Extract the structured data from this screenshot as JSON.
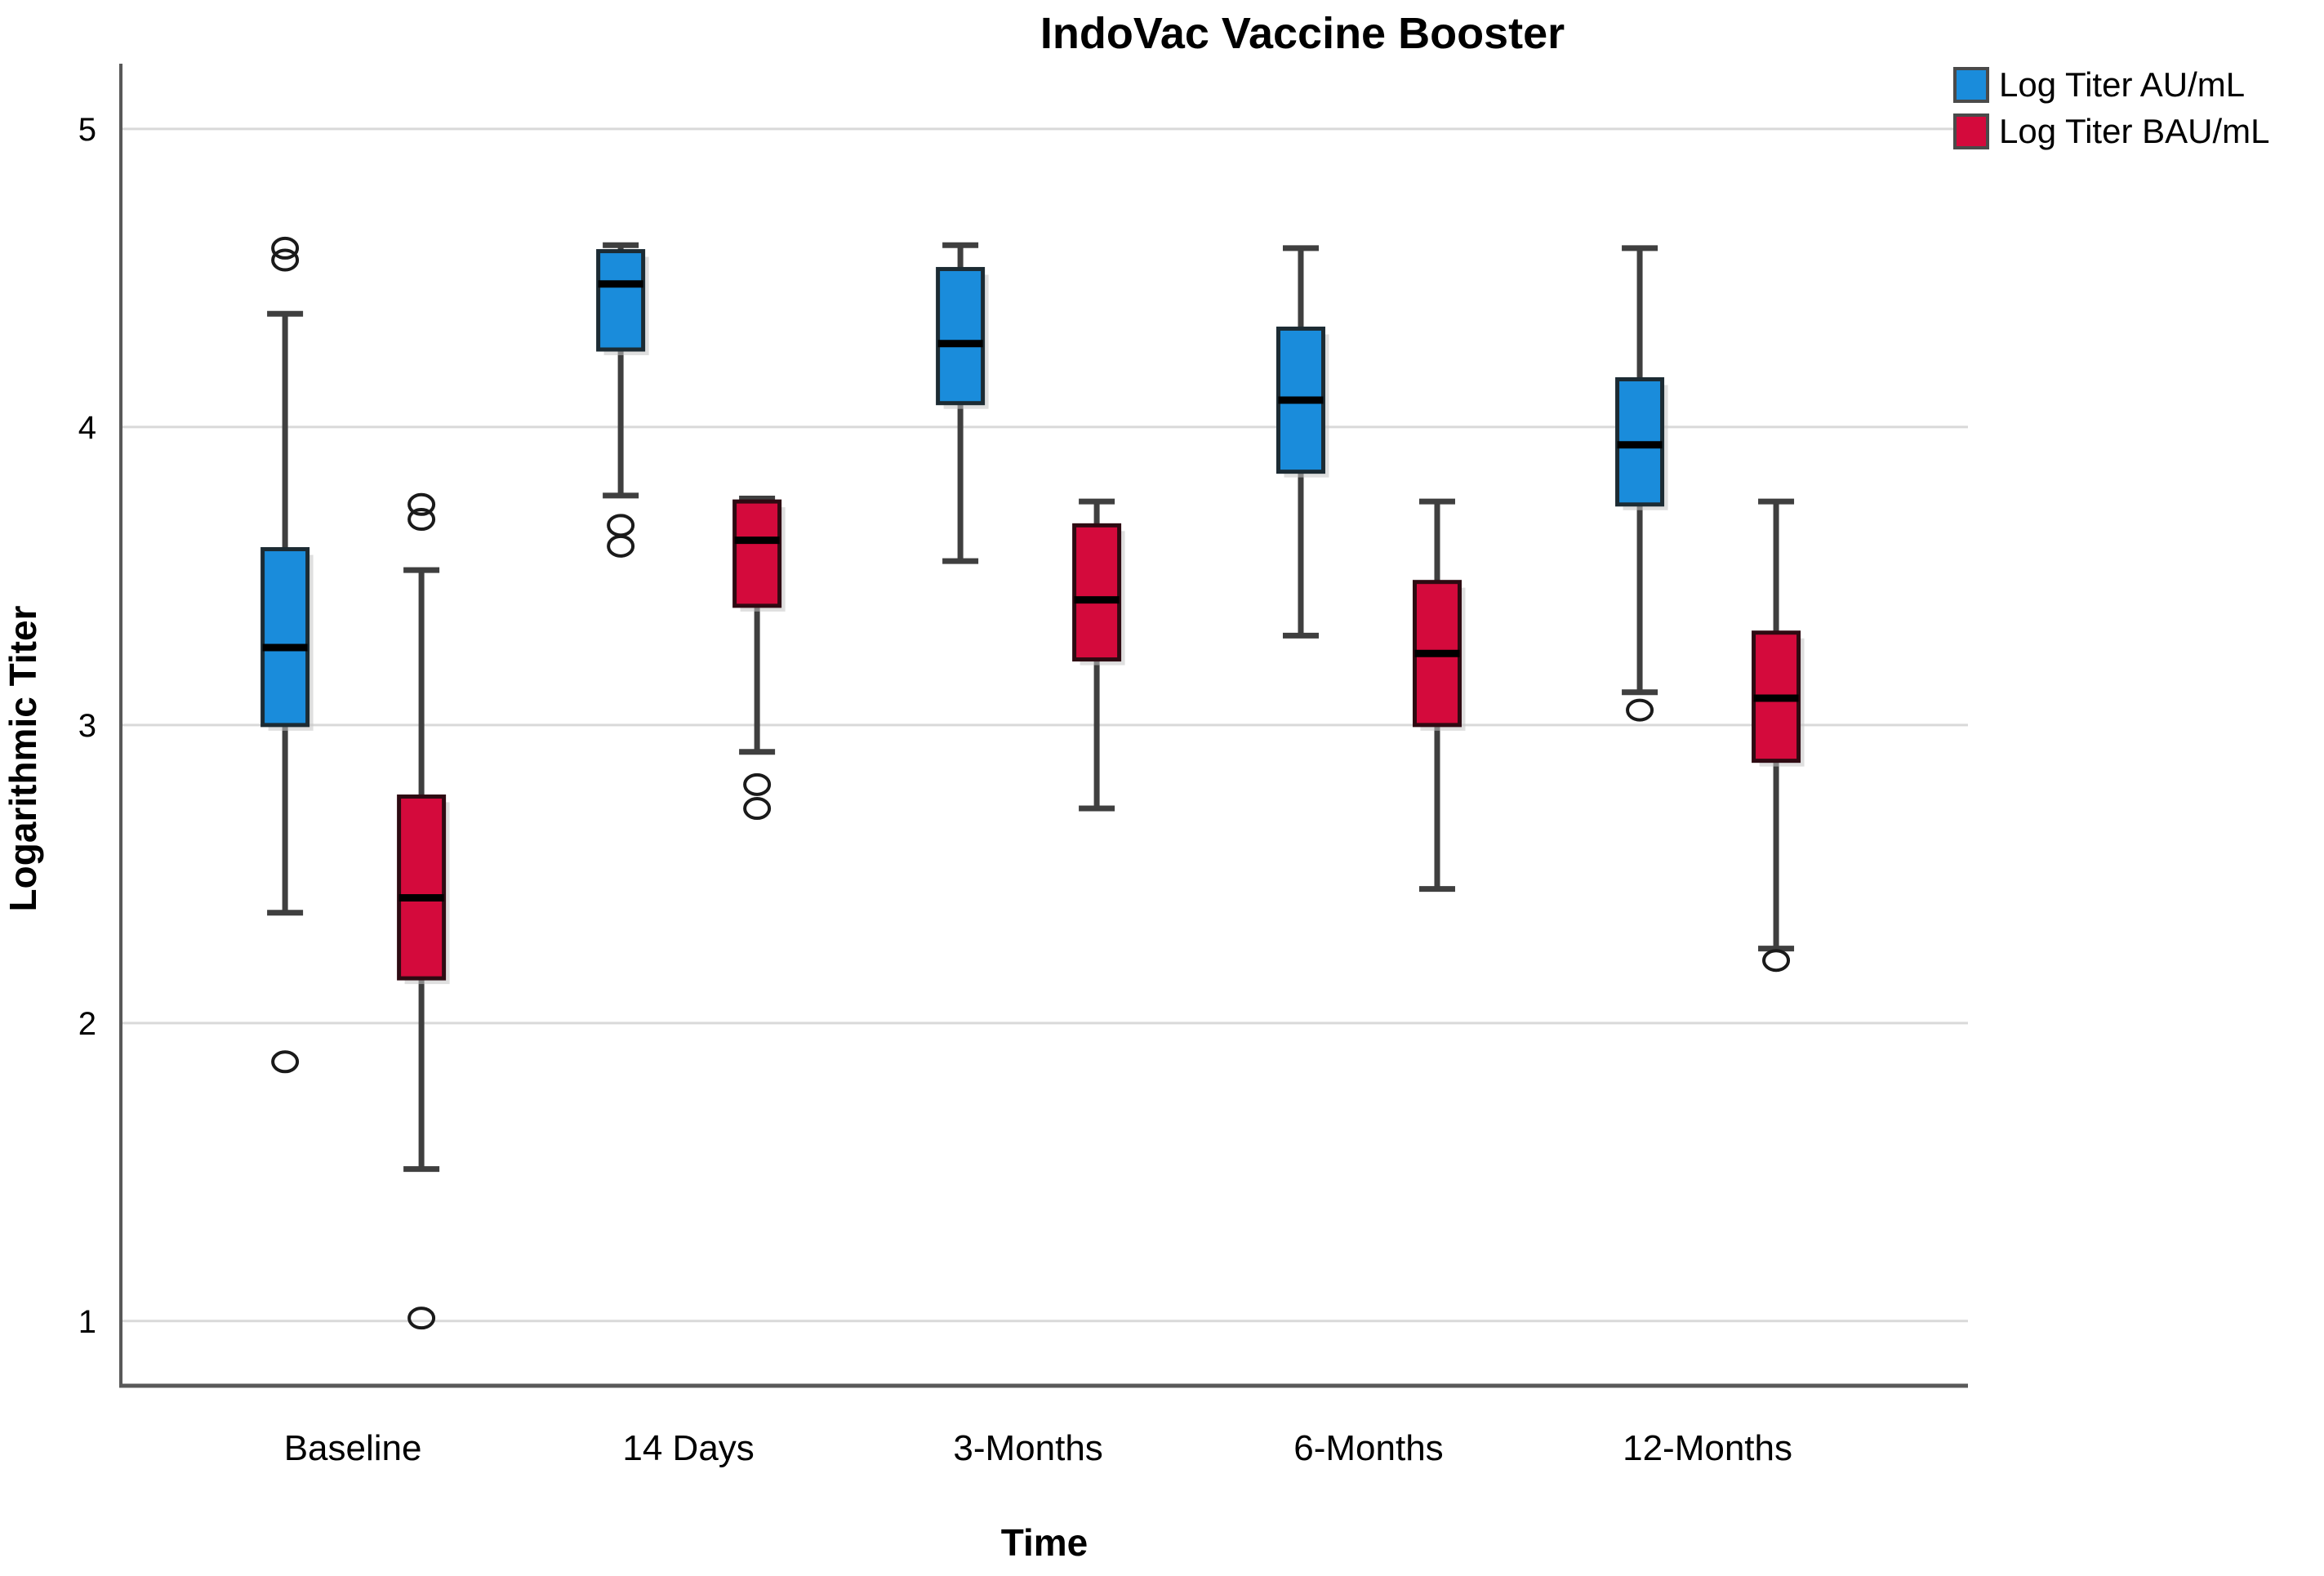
{
  "title": "IndoVac Vaccine Booster",
  "legend": [
    {
      "label": "Log Titer AU/mL",
      "color": "#1A8CDB"
    },
    {
      "label": "Log Titer BAU/mL",
      "color": "#D40A3C"
    }
  ],
  "axes": {
    "x_title": "Time",
    "y_title": "Logarithmic Titer",
    "y_ticks": [
      5,
      4,
      3,
      2,
      1
    ],
    "ylim": [
      0.783,
      5.219
    ],
    "grid": true,
    "legend_position": "top-right"
  },
  "chart_data": {
    "type": "boxplot",
    "title": "IndoVac Vaccine Booster",
    "xlabel": "Time",
    "ylabel": "Logarithmic Titer",
    "categories": [
      "Baseline",
      "14 Days",
      "3-Months",
      "6-Months",
      "12-Months"
    ],
    "series": [
      {
        "name": "Log Titer AU/mL",
        "color": "#1A8CDB",
        "border": "#1c2b33",
        "boxes": [
          {
            "whisker_low": 2.37,
            "q1": 3.0,
            "median": 3.26,
            "q3": 3.59,
            "whisker_high": 4.38,
            "outliers": [
              4.6,
              4.56,
              1.87
            ]
          },
          {
            "whisker_low": 3.77,
            "q1": 4.26,
            "median": 4.48,
            "q3": 4.59,
            "whisker_high": 4.61,
            "outliers": [
              3.67,
              3.6
            ]
          },
          {
            "whisker_low": 3.55,
            "q1": 4.08,
            "median": 4.28,
            "q3": 4.53,
            "whisker_high": 4.61,
            "outliers": []
          },
          {
            "whisker_low": 3.3,
            "q1": 3.85,
            "median": 4.09,
            "q3": 4.33,
            "whisker_high": 4.6,
            "outliers": []
          },
          {
            "whisker_low": 3.11,
            "q1": 3.74,
            "median": 3.94,
            "q3": 4.16,
            "whisker_high": 4.6,
            "outliers": [
              3.05
            ]
          }
        ]
      },
      {
        "name": "Log Titer BAU/mL",
        "color": "#D40A3C",
        "border": "#2e0a12",
        "boxes": [
          {
            "whisker_low": 1.51,
            "q1": 2.15,
            "median": 2.42,
            "q3": 2.76,
            "whisker_high": 3.52,
            "outliers": [
              3.74,
              3.69,
              1.01
            ]
          },
          {
            "whisker_low": 2.91,
            "q1": 3.4,
            "median": 3.62,
            "q3": 3.75,
            "whisker_high": 3.76,
            "outliers": [
              2.8,
              2.72
            ]
          },
          {
            "whisker_low": 2.72,
            "q1": 3.22,
            "median": 3.42,
            "q3": 3.67,
            "whisker_high": 3.75,
            "outliers": []
          },
          {
            "whisker_low": 2.45,
            "q1": 3.0,
            "median": 3.24,
            "q3": 3.48,
            "whisker_high": 3.75,
            "outliers": []
          },
          {
            "whisker_low": 2.25,
            "q1": 2.88,
            "median": 3.09,
            "q3": 3.31,
            "whisker_high": 3.75,
            "outliers": [
              2.21
            ]
          }
        ]
      }
    ]
  },
  "style": {
    "gridline_color": "#d9d9d9",
    "axis_color": "#595959",
    "whisker_color": "#3f3f3f",
    "median_color": "#000000",
    "shadow_color": "#c4c4c4",
    "outlier_color": "#1a1a1a"
  }
}
